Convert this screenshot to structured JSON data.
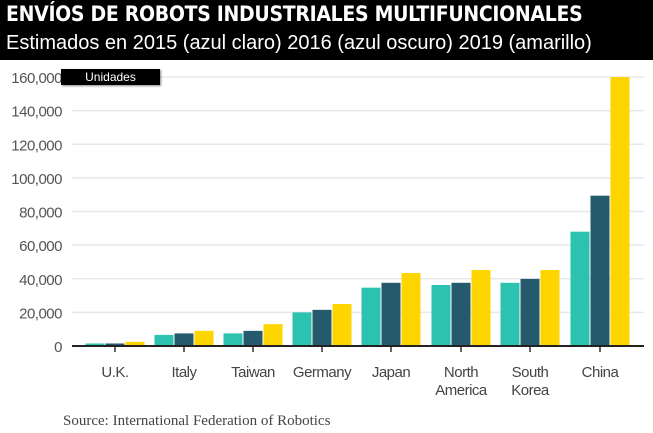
{
  "chart_data": {
    "type": "bar",
    "title": "ENVÍOS DE ROBOTS INDUSTRIALES MULTIFUNCIONALES",
    "subtitle": "Estimados en 2015 (azul claro) 2016 (azul oscuro) 2019 (amarillo)",
    "ylabel": "Unidades",
    "ylim": [
      0,
      160000
    ],
    "yticks": [
      "0",
      "20,000",
      "40,000",
      "60,000",
      "80,000",
      "100,000",
      "120,000",
      "140,000",
      "160,000"
    ],
    "grid": true,
    "categories": [
      [
        "U.K."
      ],
      [
        "Italy"
      ],
      [
        "Taiwan"
      ],
      [
        "Germany"
      ],
      [
        "Japan"
      ],
      [
        "North",
        "America"
      ],
      [
        "South",
        "Korea"
      ],
      [
        "China"
      ]
    ],
    "series": [
      {
        "color": "#2bc2b0",
        "values": [
          1500,
          6600,
          7500,
          20000,
          34700,
          36300,
          37600,
          68000
        ]
      },
      {
        "color": "#255a6c",
        "values": [
          1500,
          7500,
          9000,
          21500,
          37600,
          37600,
          39900,
          89400
        ]
      },
      {
        "color": "#ffd500",
        "values": [
          2500,
          9000,
          13000,
          25000,
          43400,
          45200,
          45200,
          160000
        ]
      }
    ],
    "source": "Source: International Federation of Robotics"
  }
}
